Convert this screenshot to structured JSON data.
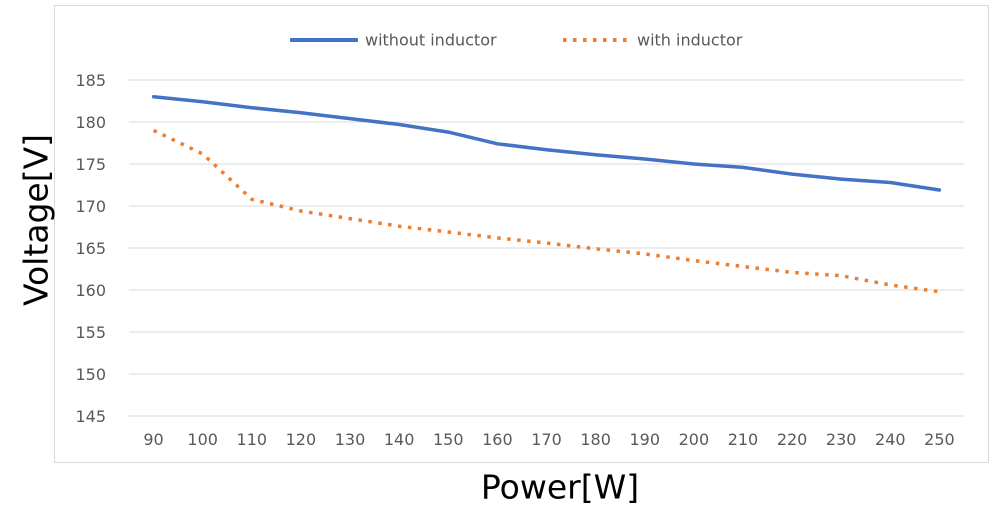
{
  "chart_data": {
    "type": "line",
    "xlabel": "Power[W]",
    "ylabel": "Voltage[V]",
    "x": [
      90,
      100,
      110,
      120,
      130,
      140,
      150,
      160,
      170,
      180,
      190,
      200,
      210,
      220,
      230,
      240,
      250
    ],
    "ylim": [
      145,
      185
    ],
    "yticks": [
      145,
      150,
      155,
      160,
      165,
      170,
      175,
      180,
      185
    ],
    "grid": "horizontal",
    "legend_position": "top-center",
    "series": [
      {
        "name": "without inductor",
        "color": "#4472c4",
        "style": "solid",
        "values": [
          183.0,
          182.4,
          181.7,
          181.1,
          180.4,
          179.7,
          178.8,
          177.4,
          176.7,
          176.1,
          175.6,
          175.0,
          174.6,
          173.8,
          173.2,
          172.8,
          171.9
        ]
      },
      {
        "name": "with inductor",
        "color": "#ed7d31",
        "style": "dotted",
        "values": [
          179.0,
          176.2,
          170.8,
          169.4,
          168.5,
          167.6,
          166.9,
          166.2,
          165.6,
          164.9,
          164.3,
          163.5,
          162.8,
          162.1,
          161.7,
          160.6,
          159.8
        ]
      }
    ]
  }
}
